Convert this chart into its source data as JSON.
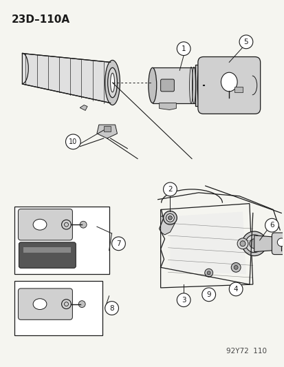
{
  "title": "23D–110A",
  "bg_color": "#f5f5f0",
  "line_color": "#1a1a1a",
  "title_fontsize": 11,
  "watermark": "92Y72  110"
}
